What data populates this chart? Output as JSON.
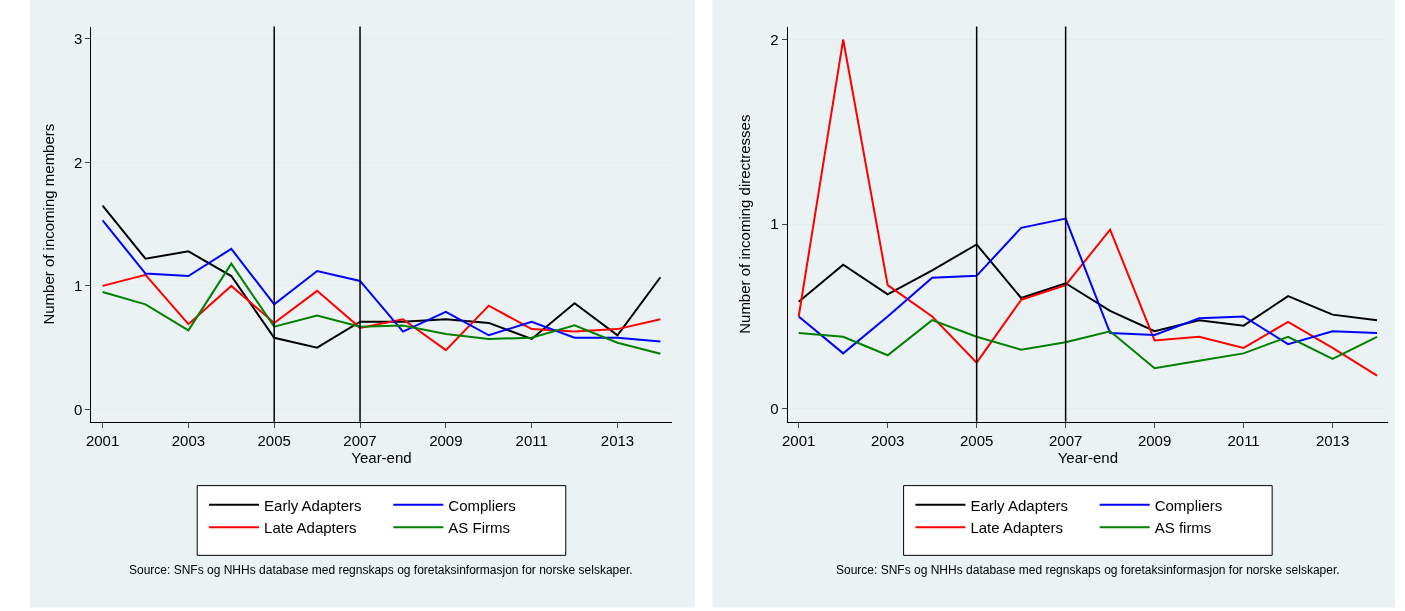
{
  "chart_data": [
    {
      "type": "line",
      "xlabel": "Year-end",
      "ylabel": "Number of incoming members",
      "x": [
        2001,
        2002,
        2003,
        2004,
        2005,
        2006,
        2007,
        2008,
        2009,
        2010,
        2011,
        2012,
        2013,
        2014
      ],
      "series": [
        {
          "name": "Early Adapters",
          "color": "#000000",
          "values": [
            1.65,
            1.22,
            1.28,
            1.08,
            0.58,
            0.5,
            0.71,
            0.71,
            0.73,
            0.7,
            0.57,
            0.86,
            0.6,
            1.07
          ]
        },
        {
          "name": "Late Adapters",
          "color": "#ff0000",
          "values": [
            1.0,
            1.09,
            0.69,
            1.0,
            0.7,
            0.96,
            0.66,
            0.73,
            0.48,
            0.84,
            0.65,
            0.63,
            0.65,
            0.73
          ]
        },
        {
          "name": "Compliers",
          "color": "#0000ff",
          "values": [
            1.53,
            1.1,
            1.08,
            1.3,
            0.85,
            1.12,
            1.04,
            0.63,
            0.79,
            0.6,
            0.71,
            0.58,
            0.58,
            0.55
          ]
        },
        {
          "name": "AS Firms",
          "color": "#008000",
          "values": [
            0.95,
            0.85,
            0.64,
            1.18,
            0.67,
            0.76,
            0.67,
            0.68,
            0.61,
            0.57,
            0.58,
            0.68,
            0.54,
            0.45
          ]
        }
      ],
      "xlim": [
        2000.74,
        2014.26
      ],
      "ylim": [
        -0.1,
        3.1
      ],
      "xticks": [
        2001,
        2003,
        2005,
        2007,
        2009,
        2011,
        2013
      ],
      "yticks": [
        0,
        1,
        2,
        3
      ],
      "grid": "y",
      "legend": "bottom",
      "ref_lines": [
        {
          "axis": "x",
          "value": 2005,
          "color": "#000000"
        },
        {
          "axis": "x",
          "value": 2007,
          "color": "#000000"
        }
      ],
      "annotations": [
        "Source: SNFs og NHHs database med regnskaps og foretaksinformasjon for norske selskaper."
      ]
    },
    {
      "type": "line",
      "xlabel": "Year-end",
      "ylabel": "Number of incoming directresses",
      "x": [
        2001,
        2002,
        2003,
        2004,
        2005,
        2006,
        2007,
        2008,
        2009,
        2010,
        2011,
        2012,
        2013,
        2014
      ],
      "series": [
        {
          "name": "Early Adapters",
          "color": "#000000",
          "values": [
            0.58,
            0.78,
            0.62,
            0.75,
            0.89,
            0.6,
            0.68,
            0.53,
            0.42,
            0.48,
            0.45,
            0.61,
            0.51,
            0.48
          ]
        },
        {
          "name": "Late Adapters",
          "color": "#ff0000",
          "values": [
            0.5,
            2.0,
            0.67,
            0.5,
            0.25,
            0.59,
            0.67,
            0.97,
            0.37,
            0.39,
            0.33,
            0.47,
            0.33,
            0.18
          ]
        },
        {
          "name": "Compliers",
          "color": "#0000ff",
          "values": [
            0.5,
            0.3,
            0.5,
            0.71,
            0.72,
            0.98,
            1.03,
            0.41,
            0.4,
            0.49,
            0.5,
            0.35,
            0.42,
            0.41
          ]
        },
        {
          "name": "AS firms",
          "color": "#008000",
          "values": [
            0.41,
            0.39,
            0.29,
            0.48,
            0.39,
            0.32,
            0.36,
            0.42,
            0.22,
            0.26,
            0.3,
            0.39,
            0.27,
            0.39
          ]
        }
      ],
      "xlim": [
        2000.75,
        2014.25
      ],
      "ylim": [
        -0.07,
        2.07
      ],
      "xticks": [
        2001,
        2003,
        2005,
        2007,
        2009,
        2011,
        2013
      ],
      "yticks": [
        0,
        1,
        2
      ],
      "grid": "y",
      "legend": "bottom",
      "ref_lines": [
        {
          "axis": "x",
          "value": 2005,
          "color": "#000000"
        },
        {
          "axis": "x",
          "value": 2007,
          "color": "#000000"
        }
      ],
      "annotations": [
        "Source: SNFs og NHHs database med regnskaps og foretaksinformasjon for norske selskaper."
      ]
    }
  ]
}
